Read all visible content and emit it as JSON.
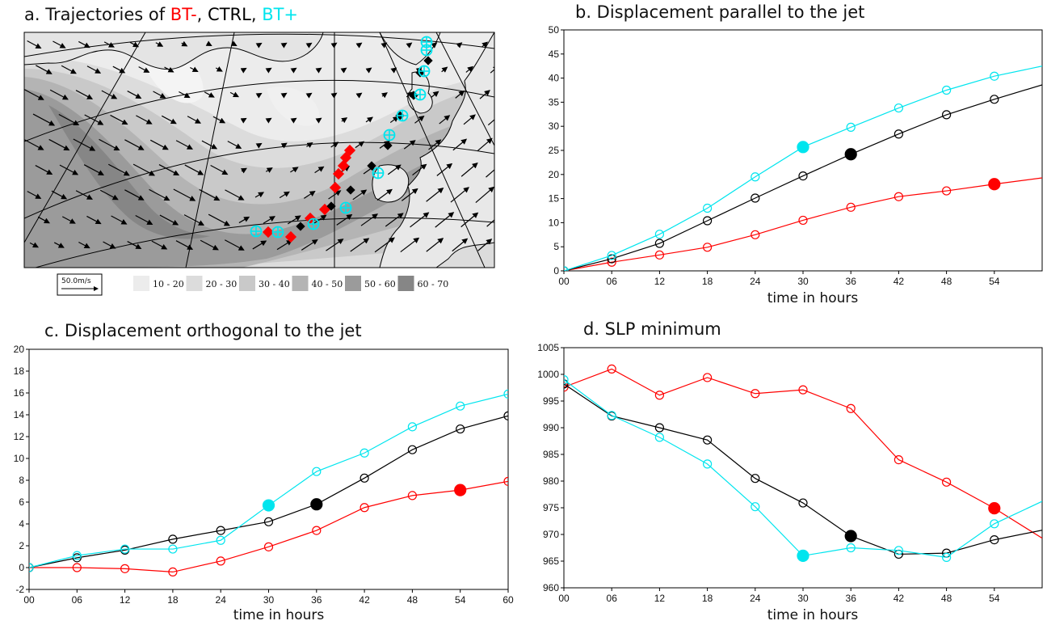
{
  "colors": {
    "bt_minus": "#ff0000",
    "ctrl": "#000000",
    "bt_plus": "#00e5ee"
  },
  "panel_a": {
    "title_prefix": "a. Trajectories of ",
    "bt_minus": "BT-",
    "sep1": ", ",
    "ctrl": "CTRL",
    "sep2": ", ",
    "bt_plus": "BT+",
    "scale_label": "50.0m/s",
    "legend": [
      "10 - 20",
      "20 - 30",
      "30 - 40",
      "40 - 50",
      "50 - 60",
      "60 - 70"
    ],
    "legend_colors": [
      "#ececec",
      "#dcdcdc",
      "#c9c9c9",
      "#b4b4b4",
      "#9b9b9b",
      "#868686"
    ]
  },
  "chart_data": [
    {
      "type": "line",
      "title": "b. Displacement parallel to the jet",
      "xlabel": "time in hours",
      "ylabel": "",
      "x_tick_labels": [
        "00",
        "06",
        "12",
        "18",
        "24",
        "30",
        "36",
        "42",
        "48",
        "54"
      ],
      "y_tick_labels": [
        "0",
        "5",
        "10",
        "15",
        "20",
        "25",
        "30",
        "35",
        "40",
        "45",
        "50"
      ],
      "xlim": [
        0,
        60
      ],
      "ylim": [
        0,
        50
      ],
      "grid": false,
      "series": [
        {
          "key": "bt_plus",
          "x": [
            0,
            6,
            12,
            18,
            24,
            30,
            36,
            42,
            48,
            54,
            60
          ],
          "y": [
            0,
            3.2,
            7.6,
            13.0,
            19.5,
            25.7,
            29.8,
            33.8,
            37.5,
            40.4,
            42.5
          ],
          "markers": [
            0,
            6,
            12,
            18,
            24,
            30,
            36,
            42,
            48,
            54
          ],
          "filled_at": 30
        },
        {
          "key": "ctrl",
          "x": [
            0,
            6,
            12,
            18,
            24,
            30,
            36,
            42,
            48,
            54,
            60
          ],
          "y": [
            0,
            2.5,
            5.7,
            10.4,
            15.1,
            19.7,
            24.2,
            28.4,
            32.4,
            35.6,
            38.6
          ],
          "markers": [
            0,
            6,
            12,
            18,
            24,
            30,
            36,
            42,
            48,
            54
          ],
          "filled_at": 36
        },
        {
          "key": "bt_minus",
          "x": [
            0,
            6,
            12,
            18,
            24,
            30,
            36,
            42,
            48,
            54,
            60
          ],
          "y": [
            0,
            1.8,
            3.3,
            4.9,
            7.5,
            10.5,
            13.2,
            15.4,
            16.6,
            18.0,
            19.3
          ],
          "markers": [
            0,
            6,
            12,
            18,
            24,
            30,
            36,
            42,
            48,
            54
          ],
          "filled_at": 54
        }
      ]
    },
    {
      "type": "line",
      "title": "c. Displacement orthogonal to the jet",
      "xlabel": "time in hours",
      "ylabel": "",
      "x_tick_labels": [
        "00",
        "06",
        "12",
        "18",
        "24",
        "30",
        "36",
        "42",
        "48",
        "54",
        "60"
      ],
      "y_tick_labels": [
        "-2",
        "0",
        "2",
        "4",
        "6",
        "8",
        "10",
        "12",
        "14",
        "16",
        "18",
        "20"
      ],
      "xlim": [
        0,
        60
      ],
      "ylim": [
        -2,
        20
      ],
      "grid": false,
      "series": [
        {
          "key": "bt_plus",
          "x": [
            0,
            6,
            12,
            18,
            24,
            30,
            36,
            42,
            48,
            54,
            60
          ],
          "y": [
            0,
            1.1,
            1.7,
            1.7,
            2.5,
            5.7,
            8.8,
            10.5,
            12.9,
            14.8,
            15.9
          ],
          "markers": [
            0,
            6,
            12,
            18,
            24,
            30,
            36,
            42,
            48,
            54,
            60
          ],
          "filled_at": 30
        },
        {
          "key": "ctrl",
          "x": [
            0,
            6,
            12,
            18,
            24,
            30,
            36,
            42,
            48,
            54,
            60
          ],
          "y": [
            0,
            0.9,
            1.6,
            2.6,
            3.4,
            4.2,
            5.8,
            8.2,
            10.8,
            12.7,
            13.9
          ],
          "markers": [
            0,
            6,
            12,
            18,
            24,
            30,
            36,
            42,
            48,
            54,
            60
          ],
          "filled_at": 36
        },
        {
          "key": "bt_minus",
          "x": [
            0,
            6,
            12,
            18,
            24,
            30,
            36,
            42,
            48,
            54,
            60
          ],
          "y": [
            0,
            0,
            -0.1,
            -0.4,
            0.6,
            1.9,
            3.4,
            5.5,
            6.6,
            7.1,
            7.9
          ],
          "markers": [
            0,
            6,
            12,
            18,
            24,
            30,
            36,
            42,
            48,
            54,
            60
          ],
          "filled_at": 54
        }
      ]
    },
    {
      "type": "line",
      "title": "d. SLP minimum",
      "xlabel": "time in hours",
      "ylabel": "",
      "x_tick_labels": [
        "00",
        "06",
        "12",
        "18",
        "24",
        "30",
        "36",
        "42",
        "48",
        "54"
      ],
      "y_tick_labels": [
        "960",
        "965",
        "970",
        "975",
        "980",
        "985",
        "990",
        "995",
        "1000",
        "1005"
      ],
      "xlim": [
        0,
        60
      ],
      "ylim": [
        960,
        1005
      ],
      "grid": false,
      "series": [
        {
          "key": "bt_plus",
          "x": [
            0,
            6,
            12,
            18,
            24,
            30,
            36,
            42,
            48,
            54,
            60
          ],
          "y": [
            999.0,
            992.3,
            988.2,
            983.2,
            975.2,
            966.0,
            967.5,
            967.0,
            965.7,
            972.0,
            976.2
          ],
          "markers": [
            0,
            6,
            12,
            18,
            24,
            30,
            36,
            42,
            48,
            54
          ],
          "filled_at": 30
        },
        {
          "key": "ctrl",
          "x": [
            0,
            6,
            12,
            18,
            24,
            30,
            36,
            42,
            48,
            54,
            60
          ],
          "y": [
            998.2,
            992.2,
            990.0,
            987.7,
            980.5,
            975.9,
            969.7,
            966.3,
            966.5,
            969.0,
            970.8
          ],
          "markers": [
            0,
            6,
            12,
            18,
            24,
            30,
            36,
            42,
            48,
            54
          ],
          "filled_at": 36
        },
        {
          "key": "bt_minus",
          "x": [
            0,
            6,
            12,
            18,
            24,
            30,
            36,
            42,
            48,
            54,
            60
          ],
          "y": [
            997.6,
            1001.0,
            996.1,
            999.4,
            996.4,
            997.1,
            993.6,
            984.0,
            979.8,
            974.9,
            969.3
          ],
          "markers": [
            0,
            6,
            12,
            18,
            24,
            30,
            36,
            42,
            48,
            54
          ],
          "filled_at": 54
        }
      ]
    }
  ]
}
